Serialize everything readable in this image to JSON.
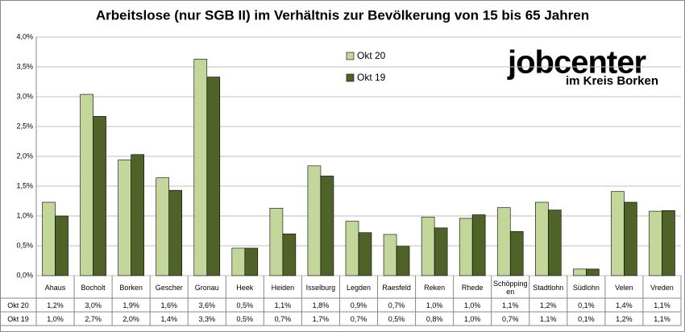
{
  "chart_data": {
    "type": "bar",
    "title": "Arbeitslose (nur SGB II) im Verhältnis zur Bevölkerung von 15 bis 65 Jahren",
    "logo": {
      "text": "jobcenter",
      "subtitle": "im Kreis Borken"
    },
    "categories": [
      "Ahaus",
      "Bocholt",
      "Borken",
      "Gescher",
      "Gronau",
      "Heek",
      "Heiden",
      "Isselburg",
      "Legden",
      "Raesfeld",
      "Reken",
      "Rhede",
      "Schöppingen",
      "Stadtlohn",
      "Südlohn",
      "Velen",
      "Vreden"
    ],
    "series": [
      {
        "name": "Okt 20",
        "color": "#c4d79b",
        "values": [
          1.23,
          3.04,
          1.94,
          1.64,
          3.63,
          0.46,
          1.13,
          1.84,
          0.91,
          0.69,
          0.98,
          0.96,
          1.14,
          1.23,
          0.11,
          1.41,
          1.08
        ],
        "value_labels": [
          "1,2%",
          "3,0%",
          "1,9%",
          "1,6%",
          "3,6%",
          "0,5%",
          "1,1%",
          "1,8%",
          "0,9%",
          "0,7%",
          "1,0%",
          "1,0%",
          "1,1%",
          "1,2%",
          "0,1%",
          "1,4%",
          "1,1%"
        ]
      },
      {
        "name": "Okt 19",
        "color": "#4f6228",
        "values": [
          1.0,
          2.67,
          2.03,
          1.43,
          3.33,
          0.46,
          0.7,
          1.67,
          0.72,
          0.49,
          0.8,
          1.02,
          0.74,
          1.1,
          0.11,
          1.23,
          1.09
        ],
        "value_labels": [
          "1,0%",
          "2,7%",
          "2,0%",
          "1,4%",
          "3,3%",
          "0,5%",
          "0,7%",
          "1,7%",
          "0,7%",
          "0,5%",
          "0,8%",
          "1,0%",
          "0,7%",
          "1,1%",
          "0,1%",
          "1,2%",
          "1,1%"
        ]
      }
    ],
    "ylim": [
      0,
      4
    ],
    "yticks": [
      {
        "value": 0,
        "label": "0,0%"
      },
      {
        "value": 0.5,
        "label": "0,5%"
      },
      {
        "value": 1,
        "label": "1,0%"
      },
      {
        "value": 1.5,
        "label": "1,5%"
      },
      {
        "value": 2,
        "label": "2,0%"
      },
      {
        "value": 2.5,
        "label": "2,5%"
      },
      {
        "value": 3,
        "label": "3,0%"
      },
      {
        "value": 3.5,
        "label": "3,5%"
      },
      {
        "value": 4,
        "label": "4,0%"
      }
    ],
    "grid": true,
    "legend": "top"
  }
}
